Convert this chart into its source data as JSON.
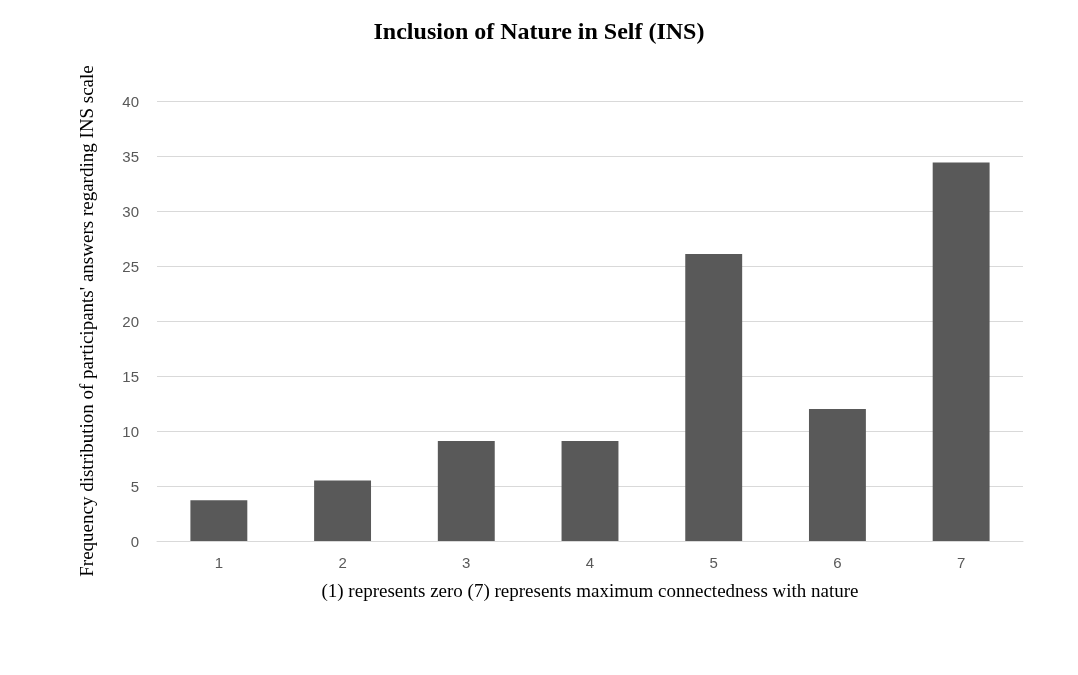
{
  "chart_data": {
    "type": "bar",
    "title": "Inclusion of Nature in Self (INS)",
    "xlabel": "(1) represents zero (7) represents maximum connectedness with nature",
    "ylabel": "Frequency distribution of participants' answers regarding INS scale",
    "categories": [
      "1",
      "2",
      "3",
      "4",
      "5",
      "6",
      "7"
    ],
    "values": [
      3.7,
      5.5,
      9.1,
      9.1,
      26.1,
      12,
      34.4
    ],
    "color": "#595959",
    "ylim": [
      0,
      40
    ],
    "yticks": [
      0,
      5,
      10,
      15,
      20,
      25,
      30,
      35,
      40
    ],
    "grid": "y"
  }
}
